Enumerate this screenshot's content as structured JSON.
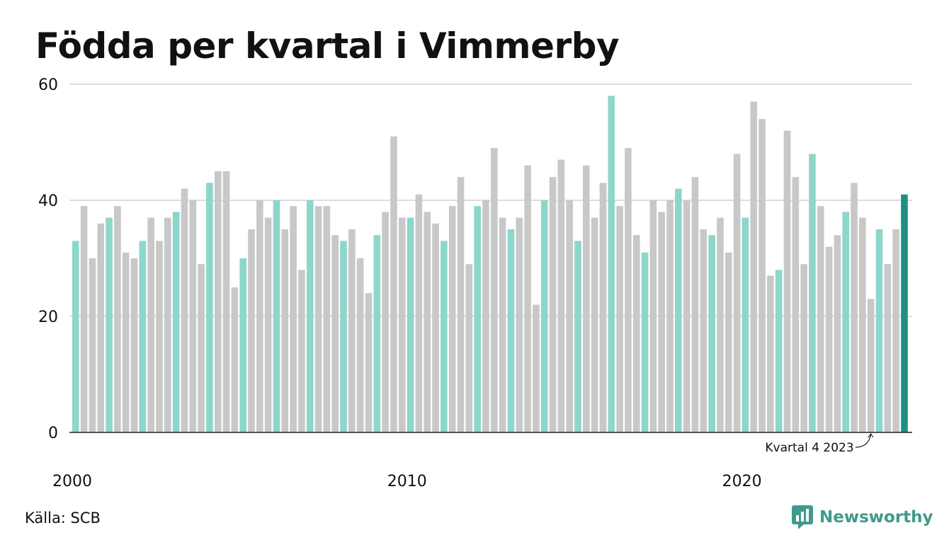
{
  "title": "Födda per kvartal i Vimmerby",
  "source": "Källa: SCB",
  "brand": "Newsworthy",
  "colors": {
    "bar": "#c8c8c8",
    "q1": "#8dd6cc",
    "latest": "#1b9184",
    "grid": "#dddddd",
    "axis": "#222222",
    "brand": "#3f9a8c"
  },
  "chart_data": {
    "type": "bar",
    "title": "Födda per kvartal i Vimmerby",
    "xlabel": "",
    "ylabel": "",
    "ylim": [
      0,
      60
    ],
    "yticks": [
      0,
      20,
      40,
      60
    ],
    "xticks": [
      "2000",
      "2010",
      "2020"
    ],
    "grid": true,
    "highlight": "Q1 bars shown in teal; latest quarter in dark teal",
    "annotation": {
      "text": "Kvartal 4 2023",
      "category": "2023 Q4"
    },
    "categories": [
      "2000 Q1",
      "2000 Q2",
      "2000 Q3",
      "2000 Q4",
      "2001 Q1",
      "2001 Q2",
      "2001 Q3",
      "2001 Q4",
      "2002 Q1",
      "2002 Q2",
      "2002 Q3",
      "2002 Q4",
      "2003 Q1",
      "2003 Q2",
      "2003 Q3",
      "2003 Q4",
      "2004 Q1",
      "2004 Q2",
      "2004 Q3",
      "2004 Q4",
      "2005 Q1",
      "2005 Q2",
      "2005 Q3",
      "2005 Q4",
      "2006 Q1",
      "2006 Q2",
      "2006 Q3",
      "2006 Q4",
      "2007 Q1",
      "2007 Q2",
      "2007 Q3",
      "2007 Q4",
      "2008 Q1",
      "2008 Q2",
      "2008 Q3",
      "2008 Q4",
      "2009 Q1",
      "2009 Q2",
      "2009 Q3",
      "2009 Q4",
      "2010 Q1",
      "2010 Q2",
      "2010 Q3",
      "2010 Q4",
      "2011 Q1",
      "2011 Q2",
      "2011 Q3",
      "2011 Q4",
      "2012 Q1",
      "2012 Q2",
      "2012 Q3",
      "2012 Q4",
      "2013 Q1",
      "2013 Q2",
      "2013 Q3",
      "2013 Q4",
      "2014 Q1",
      "2014 Q2",
      "2014 Q3",
      "2014 Q4",
      "2015 Q1",
      "2015 Q2",
      "2015 Q3",
      "2015 Q4",
      "2016 Q1",
      "2016 Q2",
      "2016 Q3",
      "2016 Q4",
      "2017 Q1",
      "2017 Q2",
      "2017 Q3",
      "2017 Q4",
      "2018 Q1",
      "2018 Q2",
      "2018 Q3",
      "2018 Q4",
      "2019 Q1",
      "2019 Q2",
      "2019 Q3",
      "2019 Q4",
      "2020 Q1",
      "2020 Q2",
      "2020 Q3",
      "2020 Q4",
      "2021 Q1",
      "2021 Q2",
      "2021 Q3",
      "2021 Q4",
      "2022 Q1",
      "2022 Q2",
      "2022 Q3",
      "2022 Q4",
      "2023 Q1",
      "2023 Q2",
      "2023 Q3",
      "2023 Q4",
      "2024 Q1",
      "2024 Q2",
      "2024 Q3",
      "2024 Q4"
    ],
    "values": [
      33,
      39,
      30,
      36,
      37,
      39,
      31,
      30,
      33,
      37,
      33,
      37,
      38,
      42,
      40,
      29,
      43,
      45,
      45,
      25,
      30,
      35,
      40,
      37,
      40,
      35,
      39,
      28,
      40,
      39,
      39,
      34,
      33,
      35,
      30,
      24,
      34,
      38,
      51,
      37,
      37,
      41,
      38,
      36,
      33,
      39,
      44,
      29,
      39,
      40,
      49,
      37,
      35,
      37,
      46,
      22,
      40,
      44,
      47,
      40,
      33,
      46,
      37,
      43,
      58,
      39,
      49,
      34,
      31,
      40,
      38,
      40,
      42,
      40,
      44,
      35,
      34,
      37,
      31,
      48,
      37,
      57,
      54,
      27,
      28,
      52,
      44,
      29,
      48,
      39,
      32,
      34,
      38,
      43,
      37,
      23,
      35,
      29,
      35,
      41
    ]
  }
}
